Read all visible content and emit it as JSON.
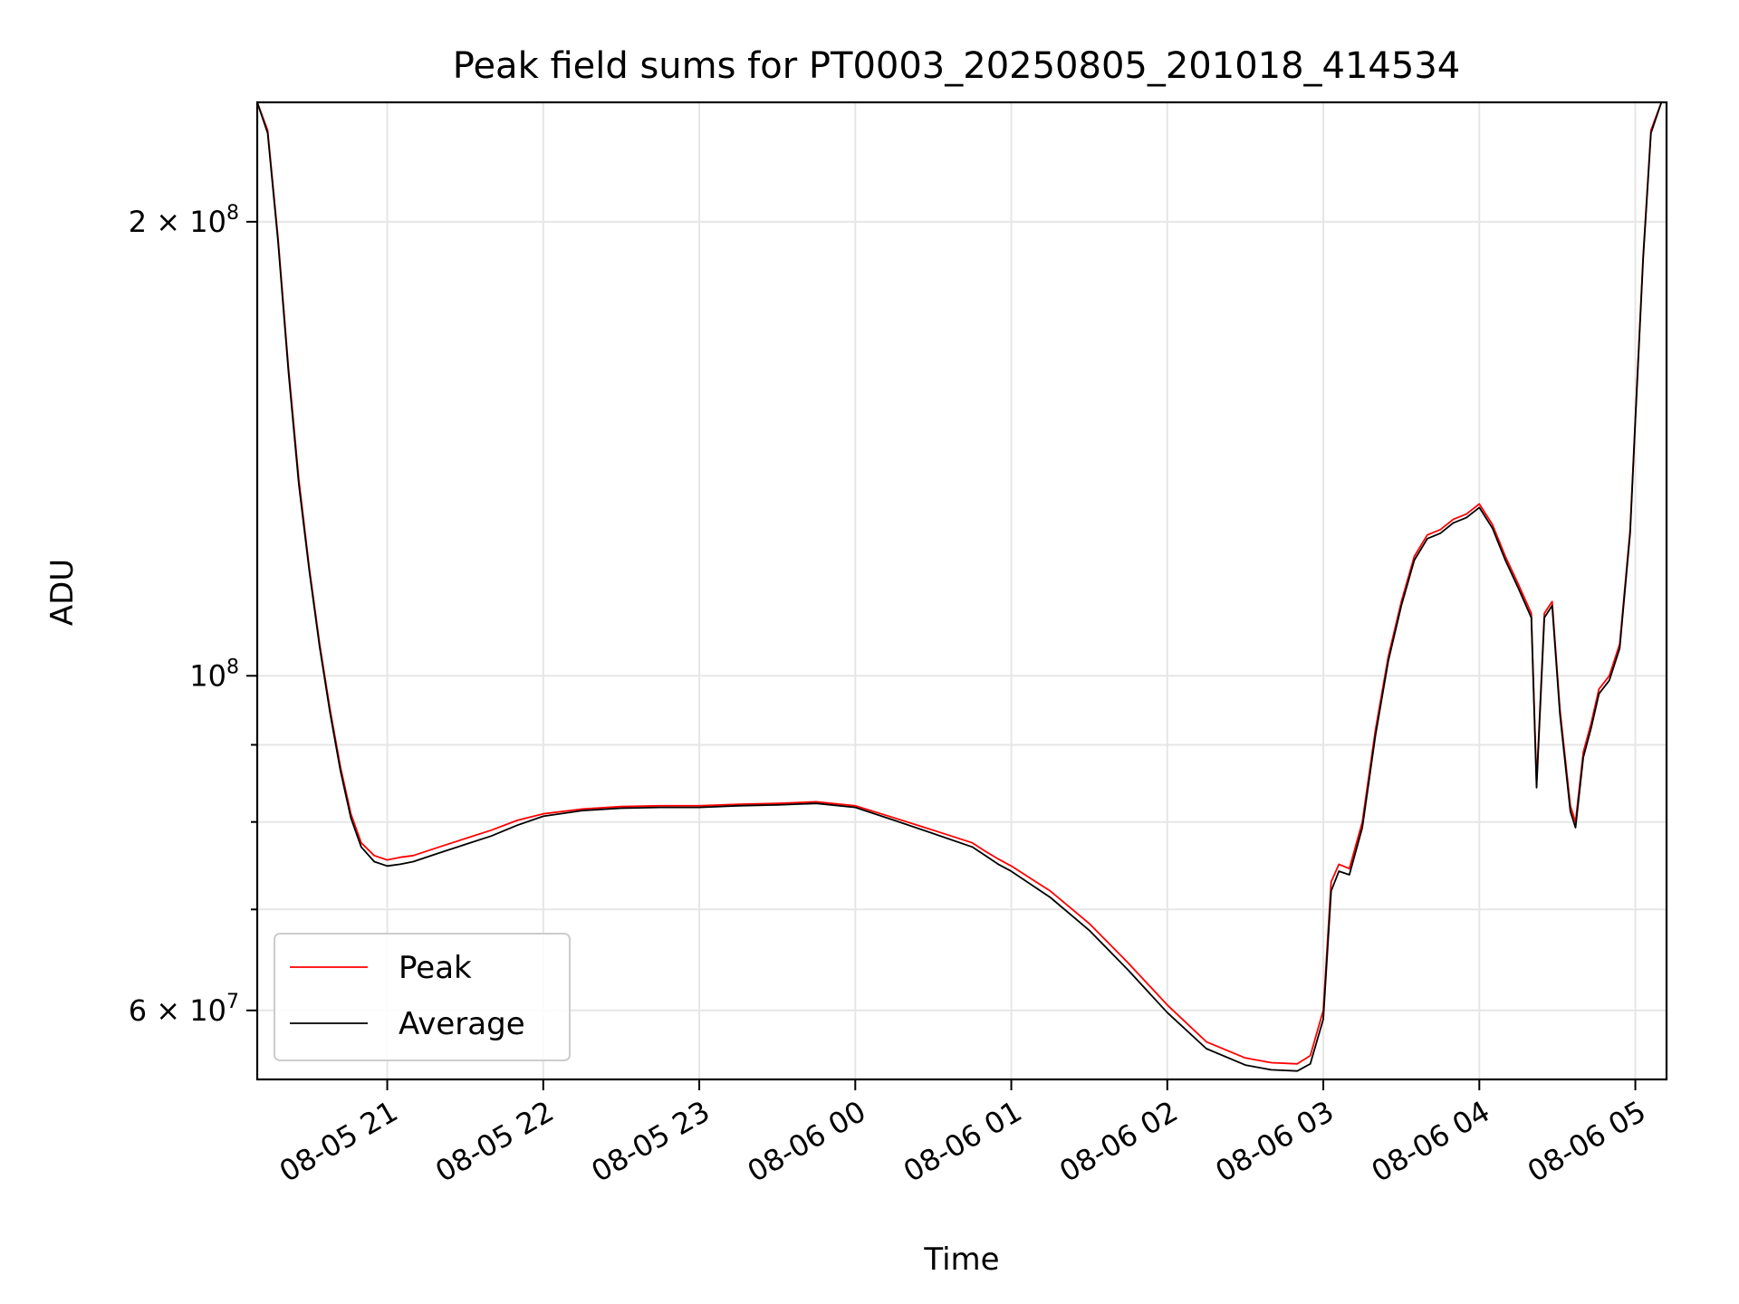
{
  "chart_data": {
    "type": "line",
    "title": "Peak field sums for PT0003_20250805_201018_414534",
    "xlabel": "Time",
    "ylabel": "ADU",
    "y_scale": "log",
    "ylim": [
      54000000,
      240000000
    ],
    "xlim": [
      "2025-08-05 20:10",
      "2025-08-06 05:12"
    ],
    "grid": true,
    "legend": "lower-left",
    "x_ticks": [
      {
        "value": "2025-08-05 21:00",
        "label": "08-05 21"
      },
      {
        "value": "2025-08-05 22:00",
        "label": "08-05 22"
      },
      {
        "value": "2025-08-05 23:00",
        "label": "08-05 23"
      },
      {
        "value": "2025-08-06 00:00",
        "label": "08-06 00"
      },
      {
        "value": "2025-08-06 01:00",
        "label": "08-06 01"
      },
      {
        "value": "2025-08-06 02:00",
        "label": "08-06 02"
      },
      {
        "value": "2025-08-06 03:00",
        "label": "08-06 03"
      },
      {
        "value": "2025-08-06 04:00",
        "label": "08-06 04"
      },
      {
        "value": "2025-08-06 05:00",
        "label": "08-06 05"
      }
    ],
    "y_major_ticks": [
      {
        "value": 60000000,
        "mantissa": "6",
        "exponent": "7"
      },
      {
        "value": 100000000,
        "mantissa": "",
        "exponent": "8"
      },
      {
        "value": 200000000,
        "mantissa": "2",
        "exponent": "8"
      }
    ],
    "y_minor_ticks": [
      70000000,
      80000000,
      90000000
    ],
    "series": [
      {
        "name": "Peak",
        "color": "#ff0000",
        "x": [
          "2025-08-05 20:10",
          "2025-08-05 20:14",
          "2025-08-05 20:18",
          "2025-08-05 20:22",
          "2025-08-05 20:26",
          "2025-08-05 20:30",
          "2025-08-05 20:34",
          "2025-08-05 20:38",
          "2025-08-05 20:42",
          "2025-08-05 20:46",
          "2025-08-05 20:50",
          "2025-08-05 20:55",
          "2025-08-05 21:00",
          "2025-08-05 21:05",
          "2025-08-05 21:10",
          "2025-08-05 21:20",
          "2025-08-05 21:30",
          "2025-08-05 21:40",
          "2025-08-05 21:50",
          "2025-08-05 22:00",
          "2025-08-05 22:15",
          "2025-08-05 22:30",
          "2025-08-05 22:45",
          "2025-08-05 23:00",
          "2025-08-05 23:15",
          "2025-08-05 23:30",
          "2025-08-05 23:45",
          "2025-08-06 00:00",
          "2025-08-06 00:15",
          "2025-08-06 00:30",
          "2025-08-06 00:45",
          "2025-08-06 00:50",
          "2025-08-06 00:55",
          "2025-08-06 01:00",
          "2025-08-06 01:15",
          "2025-08-06 01:30",
          "2025-08-06 01:45",
          "2025-08-06 02:00",
          "2025-08-06 02:15",
          "2025-08-06 02:30",
          "2025-08-06 02:40",
          "2025-08-06 02:50",
          "2025-08-06 02:55",
          "2025-08-06 03:00",
          "2025-08-06 03:03",
          "2025-08-06 03:06",
          "2025-08-06 03:10",
          "2025-08-06 03:15",
          "2025-08-06 03:20",
          "2025-08-06 03:25",
          "2025-08-06 03:30",
          "2025-08-06 03:35",
          "2025-08-06 03:40",
          "2025-08-06 03:45",
          "2025-08-06 03:50",
          "2025-08-06 03:55",
          "2025-08-06 04:00",
          "2025-08-06 04:05",
          "2025-08-06 04:10",
          "2025-08-06 04:15",
          "2025-08-06 04:20",
          "2025-08-06 04:22",
          "2025-08-06 04:25",
          "2025-08-06 04:28",
          "2025-08-06 04:31",
          "2025-08-06 04:35",
          "2025-08-06 04:37",
          "2025-08-06 04:40",
          "2025-08-06 04:43",
          "2025-08-06 04:46",
          "2025-08-06 04:50",
          "2025-08-06 04:54",
          "2025-08-06 04:58",
          "2025-08-06 05:00",
          "2025-08-06 05:03",
          "2025-08-06 05:06",
          "2025-08-06 05:10"
        ],
        "y": [
          240000000,
          230000000,
          195000000,
          160000000,
          135000000,
          118000000,
          105000000,
          95000000,
          87000000,
          81000000,
          77500000,
          76000000,
          75500000,
          75800000,
          76000000,
          77000000,
          78000000,
          79000000,
          80200000,
          81000000,
          81600000,
          81900000,
          82000000,
          82000000,
          82200000,
          82300000,
          82500000,
          82000000,
          80500000,
          79000000,
          77500000,
          76500000,
          75600000,
          74800000,
          72000000,
          68500000,
          64500000,
          60500000,
          57200000,
          55800000,
          55400000,
          55300000,
          56000000,
          60000000,
          73000000,
          75000000,
          74500000,
          80000000,
          92000000,
          103000000,
          112000000,
          120000000,
          124000000,
          125000000,
          127000000,
          128000000,
          130000000,
          126000000,
          120000000,
          115000000,
          110000000,
          85000000,
          110000000,
          112000000,
          95000000,
          82000000,
          80000000,
          89000000,
          93000000,
          98000000,
          100000000,
          105000000,
          125000000,
          148000000,
          190000000,
          230000000,
          240000000
        ]
      },
      {
        "name": "Average",
        "color": "#000000",
        "x": [
          "2025-08-05 20:10",
          "2025-08-05 20:14",
          "2025-08-05 20:18",
          "2025-08-05 20:22",
          "2025-08-05 20:26",
          "2025-08-05 20:30",
          "2025-08-05 20:34",
          "2025-08-05 20:38",
          "2025-08-05 20:42",
          "2025-08-05 20:46",
          "2025-08-05 20:50",
          "2025-08-05 20:55",
          "2025-08-05 21:00",
          "2025-08-05 21:05",
          "2025-08-05 21:10",
          "2025-08-05 21:20",
          "2025-08-05 21:30",
          "2025-08-05 21:40",
          "2025-08-05 21:50",
          "2025-08-05 22:00",
          "2025-08-05 22:15",
          "2025-08-05 22:30",
          "2025-08-05 22:45",
          "2025-08-05 23:00",
          "2025-08-05 23:15",
          "2025-08-05 23:30",
          "2025-08-05 23:45",
          "2025-08-06 00:00",
          "2025-08-06 00:15",
          "2025-08-06 00:30",
          "2025-08-06 00:45",
          "2025-08-06 00:50",
          "2025-08-06 00:55",
          "2025-08-06 01:00",
          "2025-08-06 01:15",
          "2025-08-06 01:30",
          "2025-08-06 01:45",
          "2025-08-06 02:00",
          "2025-08-06 02:15",
          "2025-08-06 02:30",
          "2025-08-06 02:40",
          "2025-08-06 02:50",
          "2025-08-06 02:55",
          "2025-08-06 03:00",
          "2025-08-06 03:03",
          "2025-08-06 03:06",
          "2025-08-06 03:10",
          "2025-08-06 03:15",
          "2025-08-06 03:20",
          "2025-08-06 03:25",
          "2025-08-06 03:30",
          "2025-08-06 03:35",
          "2025-08-06 03:40",
          "2025-08-06 03:45",
          "2025-08-06 03:50",
          "2025-08-06 03:55",
          "2025-08-06 04:00",
          "2025-08-06 04:05",
          "2025-08-06 04:10",
          "2025-08-06 04:15",
          "2025-08-06 04:20",
          "2025-08-06 04:22",
          "2025-08-06 04:25",
          "2025-08-06 04:28",
          "2025-08-06 04:31",
          "2025-08-06 04:35",
          "2025-08-06 04:37",
          "2025-08-06 04:40",
          "2025-08-06 04:43",
          "2025-08-06 04:46",
          "2025-08-06 04:50",
          "2025-08-06 04:54",
          "2025-08-06 04:58",
          "2025-08-06 05:00",
          "2025-08-06 05:03",
          "2025-08-06 05:06",
          "2025-08-06 05:10"
        ],
        "y": [
          240000000,
          229000000,
          194000000,
          159000000,
          134000000,
          117500000,
          104500000,
          94500000,
          86500000,
          80500000,
          77000000,
          75300000,
          74800000,
          75000000,
          75300000,
          76300000,
          77300000,
          78300000,
          79600000,
          80700000,
          81400000,
          81700000,
          81800000,
          81800000,
          82000000,
          82100000,
          82300000,
          81800000,
          80200000,
          78600000,
          77000000,
          76000000,
          75000000,
          74200000,
          71300000,
          67800000,
          63800000,
          59800000,
          56600000,
          55200000,
          54800000,
          54700000,
          55300000,
          59200000,
          72000000,
          74200000,
          73800000,
          79300000,
          91200000,
          102300000,
          111300000,
          119300000,
          123300000,
          124300000,
          126300000,
          127300000,
          129300000,
          125300000,
          119300000,
          114300000,
          109300000,
          84300000,
          109300000,
          111300000,
          94300000,
          81300000,
          79300000,
          88300000,
          92300000,
          97300000,
          99300000,
          104300000,
          124300000,
          147300000,
          189000000,
          229000000,
          240000000
        ]
      }
    ]
  }
}
